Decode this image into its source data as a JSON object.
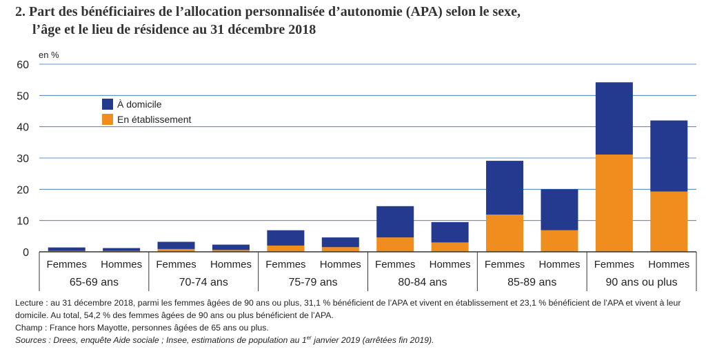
{
  "title": {
    "line1": "2. Part des bénéficiaires de l’allocation personnalisée d’autonomie (APA) selon le sexe,",
    "line2": "l’âge et le lieu de résidence au 31 décembre 2018"
  },
  "colors": {
    "domicile": "#233a8f",
    "etablissement": "#ef8d1f",
    "grid": "#2a6fb0",
    "axis": "#333333",
    "text": "#222222"
  },
  "chart_data": {
    "type": "bar",
    "stacked": true,
    "title": "Part des bénéficiaires de l’allocation personnalisée d’autonomie (APA) selon le sexe, l’âge et le lieu de résidence au 31 décembre 2018",
    "ylabel": "en %",
    "ylim": [
      0,
      60
    ],
    "yticks": [
      0,
      10,
      20,
      30,
      40,
      50,
      60
    ],
    "grid": true,
    "legend_position": "top-left",
    "groups": [
      "65-69 ans",
      "70-74 ans",
      "75-79 ans",
      "80-84 ans",
      "85-89 ans",
      "90 ans ou plus"
    ],
    "categories": [
      "Femmes",
      "Hommes",
      "Femmes",
      "Hommes",
      "Femmes",
      "Hommes",
      "Femmes",
      "Hommes",
      "Femmes",
      "Hommes",
      "Femmes",
      "Hommes"
    ],
    "series": [
      {
        "name": "En établissement",
        "key": "etablissement",
        "values": [
          0.3,
          0.3,
          0.9,
          0.6,
          2.0,
          1.5,
          4.6,
          3.0,
          11.9,
          6.9,
          31.1,
          19.3
        ]
      },
      {
        "name": "À domicile",
        "key": "domicile",
        "values": [
          1.1,
          0.9,
          2.3,
          1.7,
          4.9,
          3.1,
          10.0,
          6.5,
          17.2,
          13.1,
          23.1,
          22.7
        ]
      }
    ],
    "legend": [
      {
        "name": "À domicile",
        "key": "domicile"
      },
      {
        "name": "En établissement",
        "key": "etablissement"
      }
    ]
  },
  "notes": {
    "lecture": "Lecture : au 31 décembre 2018, parmi les femmes âgées de 90 ans ou plus, 31,1 % bénéficient de l’APA et vivent en établissement et 23,1 % bénéficient de l’APA et vivent à leur domicile. Au total, 54,2 % des femmes âgées de 90 ans ou plus bénéficient de l’APA.",
    "champ": "Champ : France hors Mayotte, personnes âgées de 65 ans ou plus.",
    "sources_prefix": "Sources : Drees, enquête Aide sociale ; Insee, estimations de population au 1",
    "sources_sup": "er",
    "sources_suffix": " janvier 2019 (arrêtées fin 2019)."
  }
}
